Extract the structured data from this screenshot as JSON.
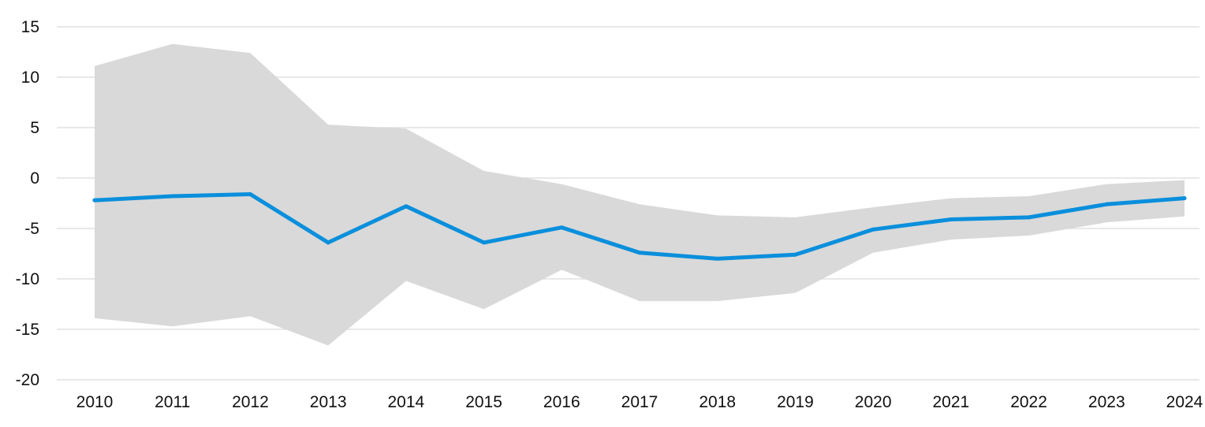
{
  "chart_data": {
    "type": "line",
    "title": "",
    "xlabel": "",
    "ylabel": "",
    "x": [
      2010,
      2011,
      2012,
      2013,
      2014,
      2015,
      2016,
      2017,
      2018,
      2019,
      2020,
      2021,
      2022,
      2023,
      2024
    ],
    "x_tick_labels": [
      "2010",
      "2011",
      "2012",
      "2013",
      "2014",
      "2015",
      "2016",
      "2017",
      "2018",
      "2019",
      "2020",
      "2021",
      "2022",
      "2023",
      "2024"
    ],
    "ylim": [
      -20,
      15
    ],
    "y_ticks": [
      15,
      10,
      5,
      0,
      -5,
      -10,
      -15,
      -20
    ],
    "y_tick_labels": [
      "15",
      "10",
      "5",
      "0",
      "-5",
      "-10",
      "-15",
      "-20"
    ],
    "grid": true,
    "series": [
      {
        "values": [
          -2.2,
          -1.8,
          -1.6,
          -6.4,
          -2.8,
          -6.4,
          -4.9,
          -7.4,
          -8.0,
          -7.6,
          -5.1,
          -4.1,
          -3.9,
          -2.6,
          -2.0
        ],
        "color": "#0a8fdc"
      }
    ],
    "band": {
      "upper": [
        11.1,
        13.3,
        12.4,
        5.3,
        4.9,
        0.7,
        -0.6,
        -2.6,
        -3.7,
        -3.9,
        -2.9,
        -2.0,
        -1.8,
        -0.6,
        -0.2
      ],
      "lower": [
        -13.9,
        -14.7,
        -13.7,
        -16.6,
        -10.2,
        -13.0,
        -9.1,
        -12.2,
        -12.2,
        -11.4,
        -7.4,
        -6.1,
        -5.7,
        -4.4,
        -3.8
      ],
      "color": "#d9d9d9"
    }
  }
}
